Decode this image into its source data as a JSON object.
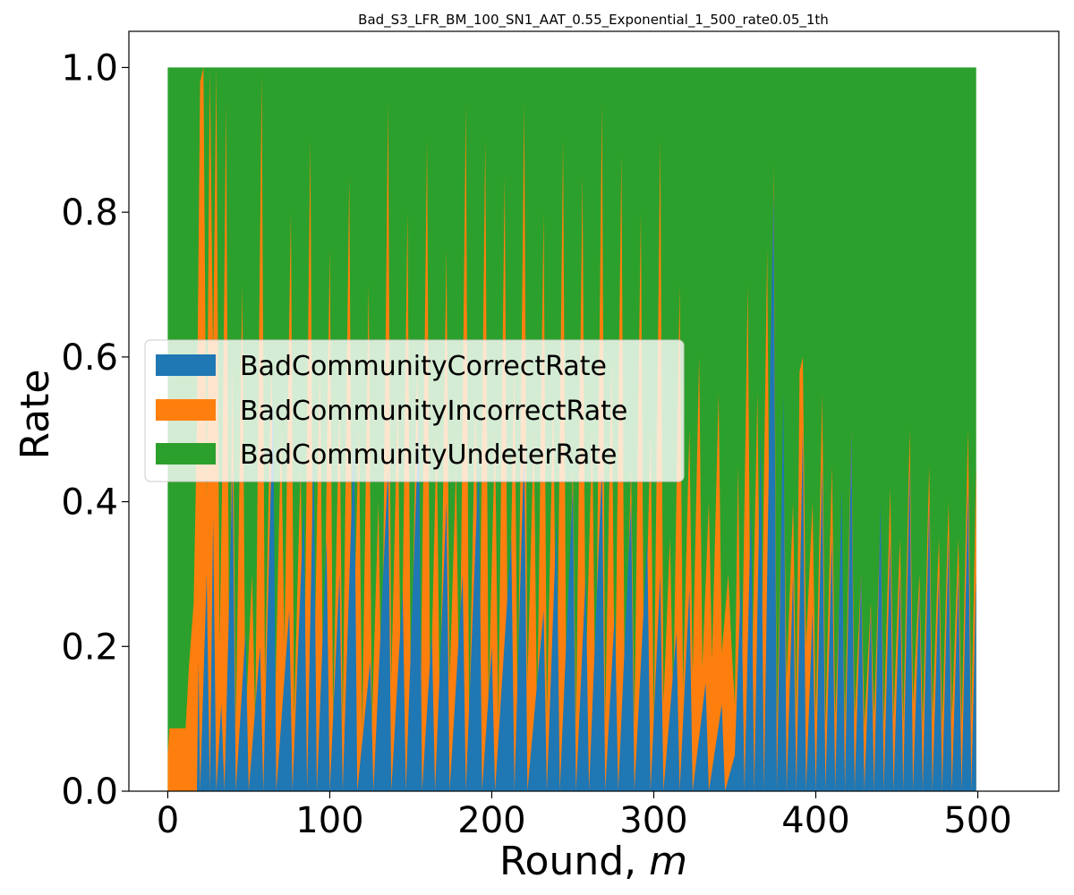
{
  "chart_data": {
    "type": "area",
    "stacked": true,
    "title": "Bad_S3_LFR_BM_100_SN1_AAT_0.55_Exponential_1_500_rate0.05_1th",
    "xlabel": "Round, ",
    "xlabel_italic": "m",
    "ylabel": "Rate",
    "xlim": [
      -24,
      550
    ],
    "ylim": [
      0,
      1.05
    ],
    "x_ticks": [
      0,
      100,
      200,
      300,
      400,
      500
    ],
    "y_ticks": [
      0.0,
      0.2,
      0.4,
      0.6,
      0.8,
      1.0
    ],
    "y_tick_labels": [
      "0.0",
      "0.2",
      "0.4",
      "0.6",
      "0.8",
      "1.0"
    ],
    "legend_position": "center-left",
    "colors": {
      "correct": "#1f77b4",
      "incorrect": "#ff7f0e",
      "undeter": "#2ca02c"
    },
    "series": [
      {
        "name": "BadCommunityCorrectRate",
        "key": "correct",
        "points": [
          [
            0,
            0
          ],
          [
            18,
            0
          ],
          [
            19,
            0.18
          ],
          [
            20,
            0
          ],
          [
            24,
            0.3
          ],
          [
            26,
            0
          ],
          [
            28,
            0.38
          ],
          [
            30,
            0
          ],
          [
            33,
            0.12
          ],
          [
            35,
            0
          ],
          [
            40,
            0.45
          ],
          [
            42,
            0
          ],
          [
            48,
            0.22
          ],
          [
            50,
            0
          ],
          [
            57,
            0.2
          ],
          [
            59,
            0
          ],
          [
            65,
            0.55
          ],
          [
            67,
            0
          ],
          [
            75,
            0.25
          ],
          [
            77,
            0
          ],
          [
            84,
            0.4
          ],
          [
            86,
            0
          ],
          [
            90,
            0.48
          ],
          [
            92,
            0
          ],
          [
            98,
            0.35
          ],
          [
            100,
            0
          ],
          [
            106,
            0.3
          ],
          [
            108,
            0
          ],
          [
            115,
            0.5
          ],
          [
            117,
            0
          ],
          [
            125,
            0.18
          ],
          [
            127,
            0
          ],
          [
            136,
            0.45
          ],
          [
            138,
            0
          ],
          [
            145,
            0.28
          ],
          [
            147,
            0
          ],
          [
            155,
            0.52
          ],
          [
            157,
            0
          ],
          [
            163,
            0.22
          ],
          [
            165,
            0
          ],
          [
            172,
            0.4
          ],
          [
            174,
            0
          ],
          [
            182,
            0.3
          ],
          [
            184,
            0
          ],
          [
            192,
            0.46
          ],
          [
            194,
            0
          ],
          [
            200,
            0.2
          ],
          [
            202,
            0
          ],
          [
            212,
            0.35
          ],
          [
            214,
            0
          ],
          [
            220,
            0.48
          ],
          [
            222,
            0
          ],
          [
            232,
            0.25
          ],
          [
            234,
            0
          ],
          [
            240,
            0.38
          ],
          [
            242,
            0
          ],
          [
            250,
            0.42
          ],
          [
            252,
            0
          ],
          [
            258,
            0.3
          ],
          [
            260,
            0
          ],
          [
            268,
            0.45
          ],
          [
            270,
            0
          ],
          [
            276,
            0.25
          ],
          [
            278,
            0
          ],
          [
            286,
            0.4
          ],
          [
            288,
            0
          ],
          [
            296,
            0.35
          ],
          [
            298,
            0
          ],
          [
            304,
            0.3
          ],
          [
            306,
            0
          ],
          [
            314,
            0.22
          ],
          [
            316,
            0
          ],
          [
            322,
            0.28
          ],
          [
            324,
            0
          ],
          [
            332,
            0.15
          ],
          [
            334,
            0
          ],
          [
            342,
            0.12
          ],
          [
            344,
            0
          ],
          [
            350,
            0.05
          ],
          [
            354,
            0.3
          ],
          [
            356,
            0
          ],
          [
            360,
            0.4
          ],
          [
            362,
            0
          ],
          [
            366,
            0.5
          ],
          [
            368,
            0
          ],
          [
            372,
            0.6
          ],
          [
            374,
            0.83
          ],
          [
            376,
            0
          ],
          [
            380,
            0.55
          ],
          [
            382,
            0
          ],
          [
            386,
            0.3
          ],
          [
            388,
            0
          ],
          [
            392,
            0.5
          ],
          [
            394,
            0
          ],
          [
            398,
            0.25
          ],
          [
            400,
            0
          ],
          [
            404,
            0.45
          ],
          [
            406,
            0
          ],
          [
            410,
            0.35
          ],
          [
            412,
            0
          ],
          [
            416,
            0.42
          ],
          [
            418,
            0
          ],
          [
            422,
            0.5
          ],
          [
            424,
            0
          ],
          [
            428,
            0.3
          ],
          [
            430,
            0
          ],
          [
            434,
            0.25
          ],
          [
            436,
            0
          ],
          [
            440,
            0.4
          ],
          [
            442,
            0
          ],
          [
            446,
            0.35
          ],
          [
            448,
            0
          ],
          [
            452,
            0.3
          ],
          [
            454,
            0
          ],
          [
            458,
            0.45
          ],
          [
            460,
            0
          ],
          [
            464,
            0.28
          ],
          [
            466,
            0
          ],
          [
            470,
            0.4
          ],
          [
            472,
            0
          ],
          [
            476,
            0.3
          ],
          [
            478,
            0
          ],
          [
            482,
            0.35
          ],
          [
            484,
            0
          ],
          [
            488,
            0.3
          ],
          [
            490,
            0
          ],
          [
            494,
            0.42
          ],
          [
            496,
            0
          ],
          [
            499,
            0.3
          ]
        ]
      },
      {
        "name": "BadCommunityIncorrectRate",
        "key": "incorrect",
        "points": [
          [
            0,
            0.05
          ],
          [
            1,
            0.087
          ],
          [
            10,
            0.087
          ],
          [
            11,
            0.087
          ],
          [
            13,
            0.17
          ],
          [
            16,
            0.26
          ],
          [
            18,
            0.5
          ],
          [
            20,
            0.98
          ],
          [
            22,
            1.0
          ],
          [
            24,
            0.4
          ],
          [
            26,
            1.0
          ],
          [
            28,
            0.6
          ],
          [
            30,
            1.0
          ],
          [
            32,
            0.2
          ],
          [
            34,
            0.5
          ],
          [
            36,
            0.95
          ],
          [
            38,
            0.15
          ],
          [
            40,
            0.6
          ],
          [
            42,
            0.09
          ],
          [
            46,
            0.7
          ],
          [
            48,
            0.09
          ],
          [
            52,
            0.3
          ],
          [
            54,
            0.09
          ],
          [
            58,
            0.99
          ],
          [
            60,
            0.15
          ],
          [
            64,
            0.6
          ],
          [
            66,
            0.09
          ],
          [
            70,
            0.5
          ],
          [
            72,
            0.2
          ],
          [
            76,
            0.8
          ],
          [
            78,
            0.1
          ],
          [
            82,
            0.45
          ],
          [
            84,
            0.09
          ],
          [
            88,
            0.9
          ],
          [
            90,
            0.12
          ],
          [
            94,
            0.6
          ],
          [
            96,
            0.09
          ],
          [
            100,
            0.75
          ],
          [
            102,
            0.1
          ],
          [
            106,
            0.55
          ],
          [
            108,
            0.09
          ],
          [
            112,
            0.85
          ],
          [
            114,
            0.15
          ],
          [
            118,
            0.5
          ],
          [
            120,
            0.08
          ],
          [
            124,
            0.7
          ],
          [
            126,
            0.09
          ],
          [
            130,
            0.4
          ],
          [
            132,
            0.1
          ],
          [
            136,
            0.95
          ],
          [
            138,
            0.15
          ],
          [
            142,
            0.55
          ],
          [
            144,
            0.09
          ],
          [
            148,
            0.8
          ],
          [
            150,
            0.12
          ],
          [
            154,
            0.6
          ],
          [
            156,
            0.09
          ],
          [
            160,
            0.9
          ],
          [
            162,
            0.1
          ],
          [
            166,
            0.5
          ],
          [
            168,
            0.09
          ],
          [
            172,
            0.75
          ],
          [
            174,
            0.15
          ],
          [
            178,
            0.45
          ],
          [
            180,
            0.09
          ],
          [
            184,
            0.95
          ],
          [
            186,
            0.1
          ],
          [
            190,
            0.55
          ],
          [
            192,
            0.08
          ],
          [
            196,
            0.9
          ],
          [
            198,
            0.12
          ],
          [
            202,
            0.5
          ],
          [
            204,
            0.09
          ],
          [
            208,
            0.85
          ],
          [
            210,
            0.1
          ],
          [
            214,
            0.6
          ],
          [
            216,
            0.09
          ],
          [
            220,
            0.95
          ],
          [
            222,
            0.15
          ],
          [
            226,
            0.5
          ],
          [
            228,
            0.09
          ],
          [
            232,
            0.8
          ],
          [
            234,
            0.1
          ],
          [
            238,
            0.55
          ],
          [
            240,
            0.09
          ],
          [
            244,
            0.9
          ],
          [
            246,
            0.12
          ],
          [
            250,
            0.45
          ],
          [
            252,
            0.09
          ],
          [
            256,
            0.85
          ],
          [
            258,
            0.15
          ],
          [
            262,
            0.5
          ],
          [
            264,
            0.09
          ],
          [
            268,
            0.95
          ],
          [
            270,
            0.1
          ],
          [
            274,
            0.6
          ],
          [
            276,
            0.09
          ],
          [
            280,
            0.88
          ],
          [
            282,
            0.12
          ],
          [
            286,
            0.45
          ],
          [
            288,
            0.09
          ],
          [
            292,
            0.8
          ],
          [
            294,
            0.12
          ],
          [
            298,
            0.5
          ],
          [
            300,
            0.09
          ],
          [
            304,
            0.9
          ],
          [
            306,
            0.12
          ],
          [
            310,
            0.35
          ],
          [
            312,
            0.12
          ],
          [
            316,
            0.7
          ],
          [
            318,
            0.14
          ],
          [
            322,
            0.5
          ],
          [
            324,
            0.16
          ],
          [
            328,
            0.6
          ],
          [
            330,
            0.17
          ],
          [
            334,
            0.4
          ],
          [
            336,
            0.18
          ],
          [
            340,
            0.55
          ],
          [
            342,
            0.19
          ],
          [
            346,
            0.3
          ],
          [
            348,
            0.2
          ],
          [
            350,
            0.12
          ],
          [
            352,
            0.45
          ],
          [
            354,
            0.1
          ],
          [
            358,
            0.7
          ],
          [
            360,
            0.09
          ],
          [
            364,
            0.55
          ],
          [
            366,
            0.1
          ],
          [
            370,
            0.75
          ],
          [
            372,
            0.12
          ],
          [
            374,
            0.87
          ],
          [
            376,
            0.09
          ],
          [
            380,
            0.5
          ],
          [
            382,
            0.15
          ],
          [
            386,
            0.4
          ],
          [
            388,
            0.1
          ],
          [
            390,
            0.58
          ],
          [
            392,
            0.6
          ],
          [
            394,
            0.2
          ],
          [
            398,
            0.4
          ],
          [
            400,
            0.1
          ],
          [
            404,
            0.55
          ],
          [
            406,
            0.09
          ],
          [
            410,
            0.45
          ],
          [
            412,
            0.1
          ],
          [
            416,
            0.35
          ],
          [
            418,
            0.09
          ],
          [
            422,
            0.5
          ],
          [
            424,
            0.1
          ],
          [
            428,
            0.3
          ],
          [
            430,
            0.09
          ],
          [
            434,
            0.26
          ],
          [
            436,
            0.1
          ],
          [
            440,
            0.38
          ],
          [
            442,
            0.09
          ],
          [
            446,
            0.42
          ],
          [
            448,
            0.1
          ],
          [
            452,
            0.35
          ],
          [
            454,
            0.09
          ],
          [
            458,
            0.5
          ],
          [
            460,
            0.12
          ],
          [
            464,
            0.3
          ],
          [
            466,
            0.09
          ],
          [
            470,
            0.45
          ],
          [
            472,
            0.1
          ],
          [
            476,
            0.35
          ],
          [
            478,
            0.09
          ],
          [
            482,
            0.4
          ],
          [
            484,
            0.1
          ],
          [
            488,
            0.35
          ],
          [
            490,
            0.09
          ],
          [
            494,
            0.5
          ],
          [
            496,
            0.1
          ],
          [
            499,
            0.45
          ]
        ]
      },
      {
        "name": "BadCommunityUndeterRate",
        "key": "undeter",
        "total": 1.0,
        "x_range": [
          0,
          499
        ]
      }
    ]
  }
}
